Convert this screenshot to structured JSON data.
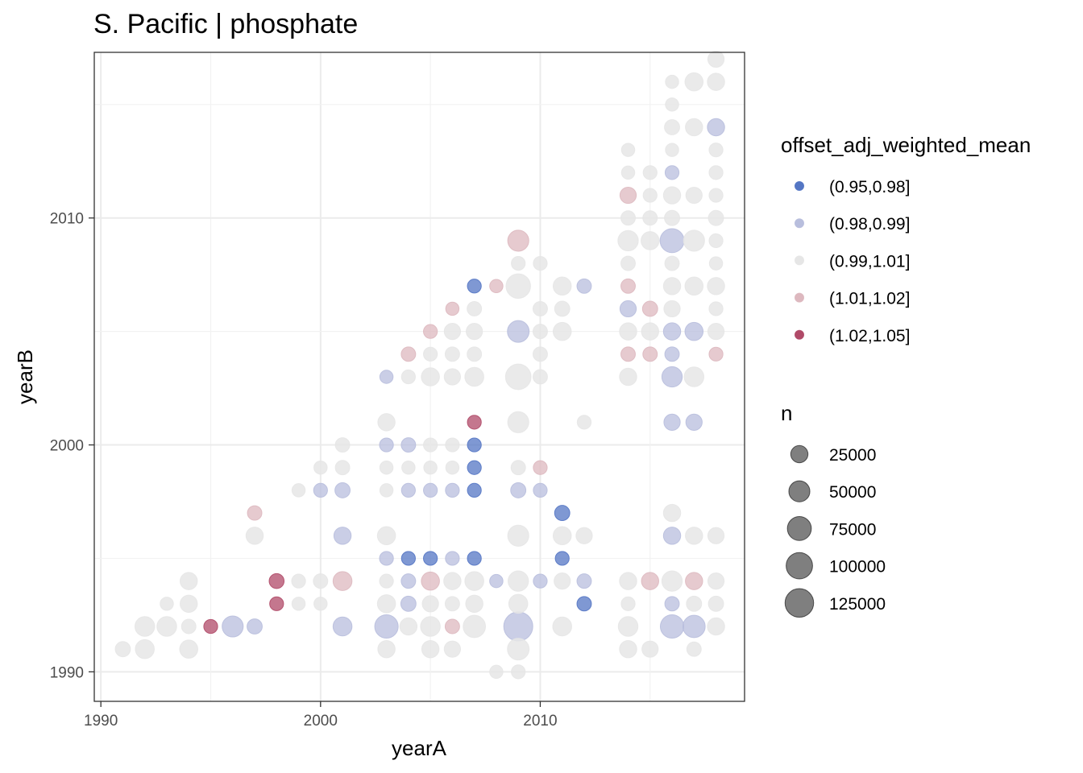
{
  "chart_data": {
    "type": "scatter",
    "title": "S. Pacific | phosphate",
    "xlabel": "yearA",
    "ylabel": "yearB",
    "xlim": [
      1989.7,
      2019.3
    ],
    "ylim": [
      1988.7,
      2017.3
    ],
    "x_ticks": [
      1990,
      2000,
      2010
    ],
    "y_ticks": [
      1990,
      2000,
      2010
    ],
    "grid": true,
    "legend_position": "right",
    "color_legend": {
      "title": "offset_adj_weighted_mean",
      "classes": [
        {
          "label": "(0.95,0.98]",
          "color": "#5476c4"
        },
        {
          "label": "(0.98,0.99]",
          "color": "#b8bedd"
        },
        {
          "label": "(0.99,1.01]",
          "color": "#e6e6e6"
        },
        {
          "label": "(1.01,1.02]",
          "color": "#ddb8bf"
        },
        {
          "label": "(1.02,1.05]",
          "color": "#b04a68"
        }
      ]
    },
    "size_legend": {
      "title": "n",
      "values": [
        25000,
        50000,
        75000,
        100000,
        125000
      ],
      "labels": [
        "25000",
        "50000",
        "75000",
        "100000",
        "125000"
      ]
    },
    "points": [
      {
        "x": 1991,
        "y": 1991,
        "n": 15000,
        "c": 2
      },
      {
        "x": 1992,
        "y": 1991,
        "n": 35000,
        "c": 2
      },
      {
        "x": 1992,
        "y": 1992,
        "n": 40000,
        "c": 2
      },
      {
        "x": 1993,
        "y": 1992,
        "n": 40000,
        "c": 2
      },
      {
        "x": 1993,
        "y": 1993,
        "n": 8000,
        "c": 2
      },
      {
        "x": 1994,
        "y": 1991,
        "n": 30000,
        "c": 2
      },
      {
        "x": 1994,
        "y": 1992,
        "n": 12000,
        "c": 2
      },
      {
        "x": 1994,
        "y": 1993,
        "n": 25000,
        "c": 2
      },
      {
        "x": 1994,
        "y": 1994,
        "n": 25000,
        "c": 2
      },
      {
        "x": 1995,
        "y": 1992,
        "n": 10000,
        "c": 4
      },
      {
        "x": 1996,
        "y": 1992,
        "n": 50000,
        "c": 1
      },
      {
        "x": 1997,
        "y": 1992,
        "n": 15000,
        "c": 1
      },
      {
        "x": 1997,
        "y": 1996,
        "n": 25000,
        "c": 2
      },
      {
        "x": 1997,
        "y": 1997,
        "n": 12000,
        "c": 3
      },
      {
        "x": 1998,
        "y": 1993,
        "n": 10000,
        "c": 4
      },
      {
        "x": 1998,
        "y": 1994,
        "n": 14000,
        "c": 4
      },
      {
        "x": 1999,
        "y": 1993,
        "n": 8000,
        "c": 2
      },
      {
        "x": 1999,
        "y": 1994,
        "n": 10000,
        "c": 2
      },
      {
        "x": 1999,
        "y": 1998,
        "n": 8000,
        "c": 2
      },
      {
        "x": 2000,
        "y": 1993,
        "n": 8000,
        "c": 2
      },
      {
        "x": 2000,
        "y": 1994,
        "n": 12000,
        "c": 2
      },
      {
        "x": 2000,
        "y": 1998,
        "n": 10000,
        "c": 1
      },
      {
        "x": 2000,
        "y": 1999,
        "n": 8000,
        "c": 2
      },
      {
        "x": 2001,
        "y": 1992,
        "n": 35000,
        "c": 1
      },
      {
        "x": 2001,
        "y": 1994,
        "n": 35000,
        "c": 3
      },
      {
        "x": 2001,
        "y": 1996,
        "n": 25000,
        "c": 1
      },
      {
        "x": 2001,
        "y": 1998,
        "n": 15000,
        "c": 1
      },
      {
        "x": 2001,
        "y": 1999,
        "n": 12000,
        "c": 2
      },
      {
        "x": 2001,
        "y": 2000,
        "n": 12000,
        "c": 2
      },
      {
        "x": 2003,
        "y": 1991,
        "n": 25000,
        "c": 2
      },
      {
        "x": 2003,
        "y": 1992,
        "n": 70000,
        "c": 1
      },
      {
        "x": 2003,
        "y": 1993,
        "n": 30000,
        "c": 2
      },
      {
        "x": 2003,
        "y": 1994,
        "n": 10000,
        "c": 2
      },
      {
        "x": 2003,
        "y": 1995,
        "n": 10000,
        "c": 1
      },
      {
        "x": 2003,
        "y": 1996,
        "n": 30000,
        "c": 2
      },
      {
        "x": 2003,
        "y": 1998,
        "n": 8000,
        "c": 2
      },
      {
        "x": 2003,
        "y": 1999,
        "n": 8000,
        "c": 2
      },
      {
        "x": 2003,
        "y": 2000,
        "n": 10000,
        "c": 1
      },
      {
        "x": 2003,
        "y": 2001,
        "n": 25000,
        "c": 2
      },
      {
        "x": 2003,
        "y": 2003,
        "n": 8000,
        "c": 1
      },
      {
        "x": 2004,
        "y": 1992,
        "n": 25000,
        "c": 2
      },
      {
        "x": 2004,
        "y": 1993,
        "n": 15000,
        "c": 1
      },
      {
        "x": 2004,
        "y": 1994,
        "n": 12000,
        "c": 1
      },
      {
        "x": 2004,
        "y": 1995,
        "n": 10000,
        "c": 0
      },
      {
        "x": 2004,
        "y": 1998,
        "n": 10000,
        "c": 1
      },
      {
        "x": 2004,
        "y": 1999,
        "n": 8000,
        "c": 2
      },
      {
        "x": 2004,
        "y": 2000,
        "n": 12000,
        "c": 1
      },
      {
        "x": 2004,
        "y": 2003,
        "n": 10000,
        "c": 2
      },
      {
        "x": 2004,
        "y": 2004,
        "n": 12000,
        "c": 3
      },
      {
        "x": 2005,
        "y": 1991,
        "n": 25000,
        "c": 2
      },
      {
        "x": 2005,
        "y": 1992,
        "n": 40000,
        "c": 2
      },
      {
        "x": 2005,
        "y": 1993,
        "n": 20000,
        "c": 2
      },
      {
        "x": 2005,
        "y": 1994,
        "n": 30000,
        "c": 3
      },
      {
        "x": 2005,
        "y": 1995,
        "n": 10000,
        "c": 0
      },
      {
        "x": 2005,
        "y": 1998,
        "n": 10000,
        "c": 1
      },
      {
        "x": 2005,
        "y": 1999,
        "n": 8000,
        "c": 2
      },
      {
        "x": 2005,
        "y": 2000,
        "n": 10000,
        "c": 2
      },
      {
        "x": 2005,
        "y": 2003,
        "n": 30000,
        "c": 2
      },
      {
        "x": 2005,
        "y": 2004,
        "n": 10000,
        "c": 2
      },
      {
        "x": 2005,
        "y": 2005,
        "n": 10000,
        "c": 3
      },
      {
        "x": 2006,
        "y": 1991,
        "n": 20000,
        "c": 2
      },
      {
        "x": 2006,
        "y": 1992,
        "n": 12000,
        "c": 3
      },
      {
        "x": 2006,
        "y": 1993,
        "n": 12000,
        "c": 2
      },
      {
        "x": 2006,
        "y": 1994,
        "n": 25000,
        "c": 2
      },
      {
        "x": 2006,
        "y": 1995,
        "n": 10000,
        "c": 1
      },
      {
        "x": 2006,
        "y": 1998,
        "n": 10000,
        "c": 1
      },
      {
        "x": 2006,
        "y": 1999,
        "n": 8000,
        "c": 2
      },
      {
        "x": 2006,
        "y": 2000,
        "n": 10000,
        "c": 2
      },
      {
        "x": 2006,
        "y": 2003,
        "n": 20000,
        "c": 2
      },
      {
        "x": 2006,
        "y": 2004,
        "n": 12000,
        "c": 2
      },
      {
        "x": 2006,
        "y": 2005,
        "n": 20000,
        "c": 2
      },
      {
        "x": 2006,
        "y": 2006,
        "n": 8000,
        "c": 3
      },
      {
        "x": 2007,
        "y": 1992,
        "n": 60000,
        "c": 2
      },
      {
        "x": 2007,
        "y": 1993,
        "n": 25000,
        "c": 2
      },
      {
        "x": 2007,
        "y": 1994,
        "n": 35000,
        "c": 2
      },
      {
        "x": 2007,
        "y": 1995,
        "n": 10000,
        "c": 0
      },
      {
        "x": 2007,
        "y": 1998,
        "n": 10000,
        "c": 0
      },
      {
        "x": 2007,
        "y": 1999,
        "n": 10000,
        "c": 0
      },
      {
        "x": 2007,
        "y": 2000,
        "n": 10000,
        "c": 0
      },
      {
        "x": 2007,
        "y": 2001,
        "n": 10000,
        "c": 4
      },
      {
        "x": 2007,
        "y": 2003,
        "n": 35000,
        "c": 2
      },
      {
        "x": 2007,
        "y": 2004,
        "n": 12000,
        "c": 2
      },
      {
        "x": 2007,
        "y": 2005,
        "n": 20000,
        "c": 2
      },
      {
        "x": 2007,
        "y": 2006,
        "n": 12000,
        "c": 2
      },
      {
        "x": 2007,
        "y": 2007,
        "n": 10000,
        "c": 0
      },
      {
        "x": 2008,
        "y": 1990,
        "n": 8000,
        "c": 2
      },
      {
        "x": 2008,
        "y": 1994,
        "n": 8000,
        "c": 1
      },
      {
        "x": 2008,
        "y": 2007,
        "n": 8000,
        "c": 3
      },
      {
        "x": 2009,
        "y": 1990,
        "n": 10000,
        "c": 2
      },
      {
        "x": 2009,
        "y": 1991,
        "n": 55000,
        "c": 2
      },
      {
        "x": 2009,
        "y": 1992,
        "n": 130000,
        "c": 1
      },
      {
        "x": 2009,
        "y": 1993,
        "n": 35000,
        "c": 2
      },
      {
        "x": 2009,
        "y": 1994,
        "n": 45000,
        "c": 2
      },
      {
        "x": 2009,
        "y": 1996,
        "n": 50000,
        "c": 2
      },
      {
        "x": 2009,
        "y": 1998,
        "n": 15000,
        "c": 1
      },
      {
        "x": 2009,
        "y": 1999,
        "n": 12000,
        "c": 2
      },
      {
        "x": 2009,
        "y": 2001,
        "n": 50000,
        "c": 2
      },
      {
        "x": 2009,
        "y": 2003,
        "n": 90000,
        "c": 2
      },
      {
        "x": 2009,
        "y": 2005,
        "n": 55000,
        "c": 1
      },
      {
        "x": 2009,
        "y": 2007,
        "n": 80000,
        "c": 2
      },
      {
        "x": 2009,
        "y": 2008,
        "n": 10000,
        "c": 2
      },
      {
        "x": 2009,
        "y": 2009,
        "n": 50000,
        "c": 3
      },
      {
        "x": 2010,
        "y": 1994,
        "n": 10000,
        "c": 1
      },
      {
        "x": 2010,
        "y": 1998,
        "n": 10000,
        "c": 1
      },
      {
        "x": 2010,
        "y": 1999,
        "n": 10000,
        "c": 3
      },
      {
        "x": 2010,
        "y": 2003,
        "n": 12000,
        "c": 2
      },
      {
        "x": 2010,
        "y": 2004,
        "n": 12000,
        "c": 2
      },
      {
        "x": 2010,
        "y": 2005,
        "n": 12000,
        "c": 2
      },
      {
        "x": 2010,
        "y": 2006,
        "n": 12000,
        "c": 2
      },
      {
        "x": 2010,
        "y": 2008,
        "n": 10000,
        "c": 2
      },
      {
        "x": 2011,
        "y": 1992,
        "n": 35000,
        "c": 2
      },
      {
        "x": 2011,
        "y": 1994,
        "n": 20000,
        "c": 2
      },
      {
        "x": 2011,
        "y": 1995,
        "n": 10000,
        "c": 0
      },
      {
        "x": 2011,
        "y": 1996,
        "n": 30000,
        "c": 2
      },
      {
        "x": 2011,
        "y": 1997,
        "n": 15000,
        "c": 0
      },
      {
        "x": 2011,
        "y": 2005,
        "n": 30000,
        "c": 2
      },
      {
        "x": 2011,
        "y": 2006,
        "n": 15000,
        "c": 2
      },
      {
        "x": 2011,
        "y": 2007,
        "n": 30000,
        "c": 2
      },
      {
        "x": 2012,
        "y": 1993,
        "n": 12000,
        "c": 0
      },
      {
        "x": 2012,
        "y": 1994,
        "n": 12000,
        "c": 1
      },
      {
        "x": 2012,
        "y": 1996,
        "n": 20000,
        "c": 2
      },
      {
        "x": 2012,
        "y": 2001,
        "n": 10000,
        "c": 2
      },
      {
        "x": 2012,
        "y": 2007,
        "n": 12000,
        "c": 1
      },
      {
        "x": 2014,
        "y": 1992,
        "n": 40000,
        "c": 2
      },
      {
        "x": 2014,
        "y": 1991,
        "n": 25000,
        "c": 2
      },
      {
        "x": 2014,
        "y": 1993,
        "n": 10000,
        "c": 2
      },
      {
        "x": 2014,
        "y": 1994,
        "n": 25000,
        "c": 2
      },
      {
        "x": 2014,
        "y": 2003,
        "n": 25000,
        "c": 2
      },
      {
        "x": 2014,
        "y": 2004,
        "n": 12000,
        "c": 3
      },
      {
        "x": 2014,
        "y": 2005,
        "n": 25000,
        "c": 2
      },
      {
        "x": 2014,
        "y": 2006,
        "n": 20000,
        "c": 1
      },
      {
        "x": 2014,
        "y": 2007,
        "n": 12000,
        "c": 3
      },
      {
        "x": 2014,
        "y": 2008,
        "n": 12000,
        "c": 2
      },
      {
        "x": 2014,
        "y": 2009,
        "n": 45000,
        "c": 2
      },
      {
        "x": 2014,
        "y": 2010,
        "n": 12000,
        "c": 2
      },
      {
        "x": 2014,
        "y": 2011,
        "n": 20000,
        "c": 3
      },
      {
        "x": 2014,
        "y": 2012,
        "n": 8000,
        "c": 2
      },
      {
        "x": 2014,
        "y": 2013,
        "n": 8000,
        "c": 2
      },
      {
        "x": 2015,
        "y": 1991,
        "n": 20000,
        "c": 2
      },
      {
        "x": 2015,
        "y": 1994,
        "n": 25000,
        "c": 3
      },
      {
        "x": 2015,
        "y": 2004,
        "n": 12000,
        "c": 3
      },
      {
        "x": 2015,
        "y": 2005,
        "n": 25000,
        "c": 2
      },
      {
        "x": 2015,
        "y": 2006,
        "n": 15000,
        "c": 3
      },
      {
        "x": 2015,
        "y": 2009,
        "n": 30000,
        "c": 2
      },
      {
        "x": 2015,
        "y": 2010,
        "n": 12000,
        "c": 2
      },
      {
        "x": 2015,
        "y": 2011,
        "n": 10000,
        "c": 2
      },
      {
        "x": 2015,
        "y": 2012,
        "n": 10000,
        "c": 2
      },
      {
        "x": 2016,
        "y": 1992,
        "n": 70000,
        "c": 1
      },
      {
        "x": 2016,
        "y": 1993,
        "n": 12000,
        "c": 1
      },
      {
        "x": 2016,
        "y": 1994,
        "n": 45000,
        "c": 2
      },
      {
        "x": 2016,
        "y": 1996,
        "n": 25000,
        "c": 1
      },
      {
        "x": 2016,
        "y": 1997,
        "n": 25000,
        "c": 2
      },
      {
        "x": 2016,
        "y": 2001,
        "n": 20000,
        "c": 1
      },
      {
        "x": 2016,
        "y": 2003,
        "n": 45000,
        "c": 1
      },
      {
        "x": 2016,
        "y": 2004,
        "n": 12000,
        "c": 1
      },
      {
        "x": 2016,
        "y": 2005,
        "n": 25000,
        "c": 1
      },
      {
        "x": 2016,
        "y": 2006,
        "n": 20000,
        "c": 2
      },
      {
        "x": 2016,
        "y": 2007,
        "n": 25000,
        "c": 2
      },
      {
        "x": 2016,
        "y": 2008,
        "n": 12000,
        "c": 2
      },
      {
        "x": 2016,
        "y": 2009,
        "n": 75000,
        "c": 1
      },
      {
        "x": 2016,
        "y": 2010,
        "n": 15000,
        "c": 2
      },
      {
        "x": 2016,
        "y": 2011,
        "n": 25000,
        "c": 2
      },
      {
        "x": 2016,
        "y": 2012,
        "n": 10000,
        "c": 1
      },
      {
        "x": 2016,
        "y": 2013,
        "n": 8000,
        "c": 2
      },
      {
        "x": 2016,
        "y": 2014,
        "n": 15000,
        "c": 2
      },
      {
        "x": 2016,
        "y": 2015,
        "n": 8000,
        "c": 2
      },
      {
        "x": 2016,
        "y": 2016,
        "n": 8000,
        "c": 2
      },
      {
        "x": 2017,
        "y": 1991,
        "n": 12000,
        "c": 2
      },
      {
        "x": 2017,
        "y": 1992,
        "n": 60000,
        "c": 1
      },
      {
        "x": 2017,
        "y": 1993,
        "n": 15000,
        "c": 2
      },
      {
        "x": 2017,
        "y": 1994,
        "n": 25000,
        "c": 3
      },
      {
        "x": 2017,
        "y": 1996,
        "n": 25000,
        "c": 2
      },
      {
        "x": 2017,
        "y": 2001,
        "n": 20000,
        "c": 1
      },
      {
        "x": 2017,
        "y": 2003,
        "n": 40000,
        "c": 2
      },
      {
        "x": 2017,
        "y": 2005,
        "n": 30000,
        "c": 1
      },
      {
        "x": 2017,
        "y": 2007,
        "n": 30000,
        "c": 2
      },
      {
        "x": 2017,
        "y": 2009,
        "n": 50000,
        "c": 2
      },
      {
        "x": 2017,
        "y": 2011,
        "n": 20000,
        "c": 2
      },
      {
        "x": 2017,
        "y": 2014,
        "n": 25000,
        "c": 2
      },
      {
        "x": 2017,
        "y": 2016,
        "n": 30000,
        "c": 2
      },
      {
        "x": 2018,
        "y": 1992,
        "n": 25000,
        "c": 2
      },
      {
        "x": 2018,
        "y": 1993,
        "n": 15000,
        "c": 2
      },
      {
        "x": 2018,
        "y": 1994,
        "n": 20000,
        "c": 2
      },
      {
        "x": 2018,
        "y": 1996,
        "n": 20000,
        "c": 2
      },
      {
        "x": 2018,
        "y": 2004,
        "n": 10000,
        "c": 3
      },
      {
        "x": 2018,
        "y": 2005,
        "n": 20000,
        "c": 2
      },
      {
        "x": 2018,
        "y": 2006,
        "n": 10000,
        "c": 2
      },
      {
        "x": 2018,
        "y": 2007,
        "n": 25000,
        "c": 2
      },
      {
        "x": 2018,
        "y": 2008,
        "n": 8000,
        "c": 2
      },
      {
        "x": 2018,
        "y": 2009,
        "n": 10000,
        "c": 2
      },
      {
        "x": 2018,
        "y": 2010,
        "n": 15000,
        "c": 2
      },
      {
        "x": 2018,
        "y": 2011,
        "n": 10000,
        "c": 2
      },
      {
        "x": 2018,
        "y": 2012,
        "n": 10000,
        "c": 2
      },
      {
        "x": 2018,
        "y": 2013,
        "n": 10000,
        "c": 2
      },
      {
        "x": 2018,
        "y": 2014,
        "n": 25000,
        "c": 1
      },
      {
        "x": 2018,
        "y": 2016,
        "n": 25000,
        "c": 2
      },
      {
        "x": 2018,
        "y": 2017,
        "n": 20000,
        "c": 2
      }
    ]
  }
}
